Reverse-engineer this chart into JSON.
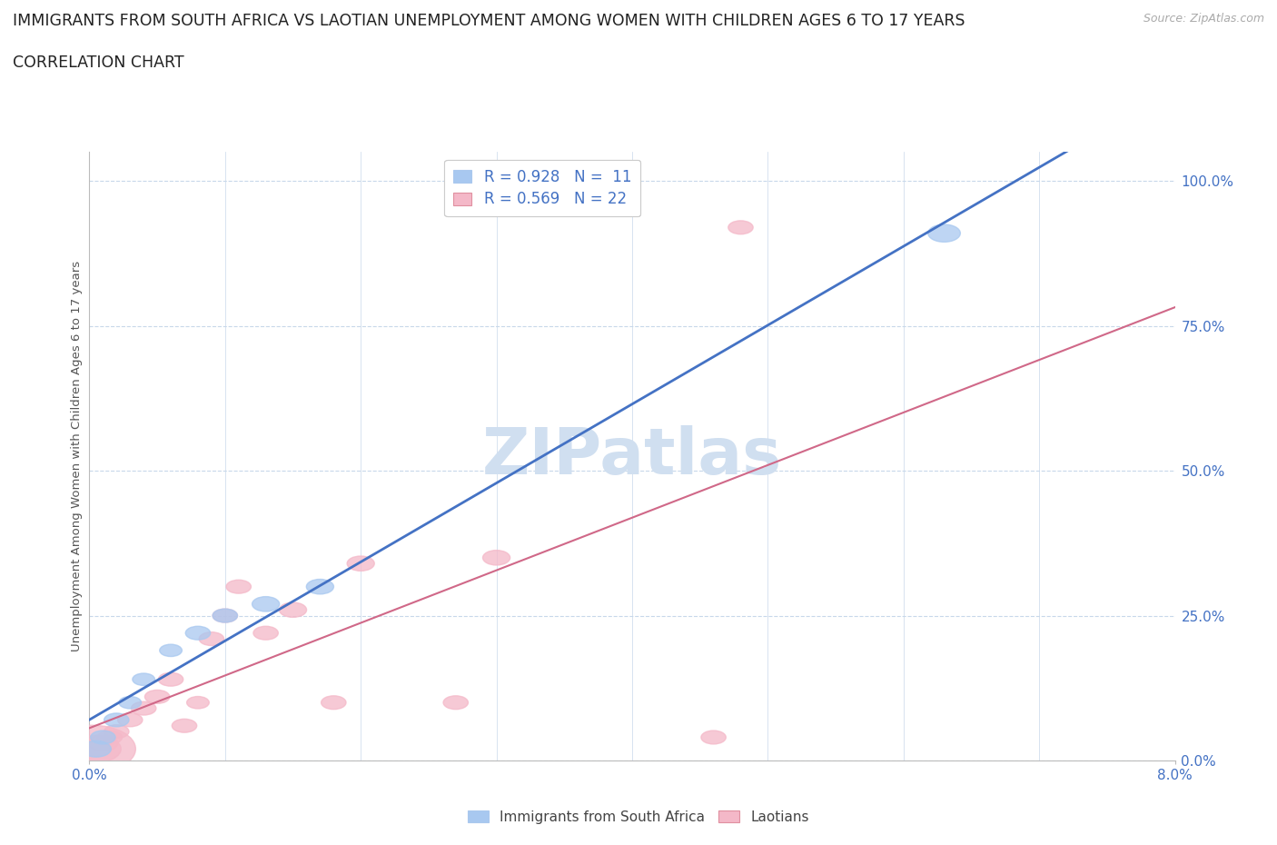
{
  "title_line1": "IMMIGRANTS FROM SOUTH AFRICA VS LAOTIAN UNEMPLOYMENT AMONG WOMEN WITH CHILDREN AGES 6 TO 17 YEARS",
  "title_line2": "CORRELATION CHART",
  "source": "Source: ZipAtlas.com",
  "ylabel": "Unemployment Among Women with Children Ages 6 to 17 years",
  "xlim": [
    0.0,
    0.08
  ],
  "ylim": [
    0.0,
    1.05
  ],
  "yticks": [
    0.0,
    0.25,
    0.5,
    0.75,
    1.0
  ],
  "ytick_labels": [
    "0.0%",
    "25.0%",
    "50.0%",
    "75.0%",
    "100.0%"
  ],
  "xticks": [
    0.0,
    0.08
  ],
  "xtick_labels": [
    "0.0%",
    "8.0%"
  ],
  "watermark": "ZIPatlas",
  "blue_R": 0.928,
  "blue_N": 11,
  "pink_R": 0.569,
  "pink_N": 22,
  "blue_color": "#a8c8f0",
  "pink_color": "#f4b8c8",
  "blue_line_color": "#4472c4",
  "pink_line_color": "#d06888",
  "legend_label_blue": "Immigrants from South Africa",
  "legend_label_pink": "Laotians",
  "blue_x": [
    0.0005,
    0.001,
    0.002,
    0.003,
    0.004,
    0.006,
    0.008,
    0.01,
    0.013,
    0.017,
    0.063
  ],
  "blue_y": [
    0.02,
    0.04,
    0.07,
    0.1,
    0.14,
    0.19,
    0.22,
    0.25,
    0.27,
    0.3,
    0.91
  ],
  "blue_s": [
    0.0012,
    0.001,
    0.001,
    0.0009,
    0.0009,
    0.0009,
    0.001,
    0.001,
    0.0011,
    0.0011,
    0.0013
  ],
  "pink_x": [
    0.0002,
    0.0005,
    0.001,
    0.0015,
    0.002,
    0.003,
    0.004,
    0.005,
    0.006,
    0.007,
    0.008,
    0.009,
    0.01,
    0.011,
    0.013,
    0.015,
    0.018,
    0.02,
    0.027,
    0.03,
    0.046,
    0.048
  ],
  "pink_y": [
    0.02,
    0.02,
    0.03,
    0.04,
    0.05,
    0.07,
    0.09,
    0.11,
    0.14,
    0.06,
    0.1,
    0.21,
    0.25,
    0.3,
    0.22,
    0.26,
    0.1,
    0.34,
    0.1,
    0.35,
    0.04,
    0.92
  ],
  "pink_s": [
    0.0035,
    0.002,
    0.0012,
    0.001,
    0.001,
    0.001,
    0.001,
    0.001,
    0.001,
    0.001,
    0.0009,
    0.001,
    0.001,
    0.001,
    0.001,
    0.0011,
    0.001,
    0.0011,
    0.001,
    0.0011,
    0.001,
    0.001
  ],
  "background_color": "#ffffff",
  "grid_color": "#c8d8ea",
  "axis_color": "#4472c4",
  "title_color": "#222222",
  "ylabel_color": "#555555",
  "source_color": "#aaaaaa",
  "watermark_color": "#d0dff0"
}
